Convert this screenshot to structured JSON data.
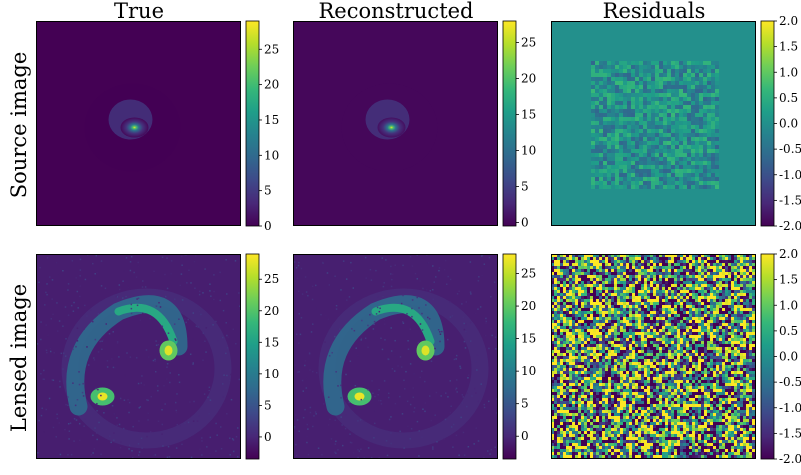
{
  "figure": {
    "column_titles": [
      "True",
      "Reconstructed",
      "Residuals"
    ],
    "row_labels": [
      "Source image",
      "Lensed image"
    ]
  },
  "colors": {
    "viridis": [
      "#440154",
      "#482878",
      "#3e4989",
      "#31688e",
      "#26828e",
      "#1f9e89",
      "#35b779",
      "#6ece58",
      "#b5de2b",
      "#fde725"
    ],
    "background": "#ffffff",
    "frame": "#000000"
  },
  "chart_data": [
    {
      "type": "heatmap",
      "row": "Source image",
      "column": "True",
      "colorbar": {
        "range": [
          0,
          29
        ],
        "ticks": [
          0,
          5,
          10,
          15,
          20,
          25
        ],
        "tick_labels": [
          "0",
          "5",
          "10",
          "15",
          "20",
          "25"
        ]
      },
      "content": "compact source with bright core (~28) and faint spiral arms, dark background"
    },
    {
      "type": "heatmap",
      "row": "Source image",
      "column": "Reconstructed",
      "colorbar": {
        "range": [
          -0.5,
          28
        ],
        "ticks": [
          0,
          5,
          10,
          15,
          20,
          25
        ],
        "tick_labels": [
          "0",
          "5",
          "10",
          "15",
          "20",
          "25"
        ]
      },
      "content": "reconstruction of compact source with bright core and faint arms"
    },
    {
      "type": "heatmap",
      "row": "Source image",
      "column": "Residuals",
      "colorbar": {
        "range": [
          -2.0,
          2.0
        ],
        "ticks": [
          -2.0,
          -1.5,
          -1.0,
          -0.5,
          0.0,
          0.5,
          1.0,
          1.5,
          2.0
        ],
        "tick_labels": [
          "-2.0",
          "-1.5",
          "-1.0",
          "-0.5",
          "0.0",
          "0.5",
          "1.0",
          "1.5",
          "2.0"
        ]
      },
      "content": "near-zero residuals, noisy central square region"
    },
    {
      "type": "heatmap",
      "row": "Lensed image",
      "column": "True",
      "colorbar": {
        "range": [
          -3.5,
          29
        ],
        "ticks": [
          0,
          5,
          10,
          15,
          20,
          25
        ],
        "tick_labels": [
          "0",
          "5",
          "10",
          "15",
          "20",
          "25"
        ]
      },
      "content": "lensed arc forming a partial Einstein ring with two bright images"
    },
    {
      "type": "heatmap",
      "row": "Lensed image",
      "column": "Reconstructed",
      "colorbar": {
        "range": [
          -3.5,
          28
        ],
        "ticks": [
          0,
          5,
          10,
          15,
          20,
          25
        ],
        "tick_labels": [
          "0",
          "5",
          "10",
          "15",
          "20",
          "25"
        ]
      },
      "content": "reconstructed lensed arc with two bright images"
    },
    {
      "type": "heatmap",
      "row": "Lensed image",
      "column": "Residuals",
      "colorbar": {
        "range": [
          -2.0,
          2.0
        ],
        "ticks": [
          -2.0,
          -1.5,
          -1.0,
          -0.5,
          0.0,
          0.5,
          1.0,
          1.5,
          2.0
        ],
        "tick_labels": [
          "-2.0",
          "-1.5",
          "-1.0",
          "-0.5",
          "0.0",
          "0.5",
          "1.0",
          "1.5",
          "2.0"
        ]
      },
      "content": "uniform random noise residuals across full field"
    }
  ]
}
